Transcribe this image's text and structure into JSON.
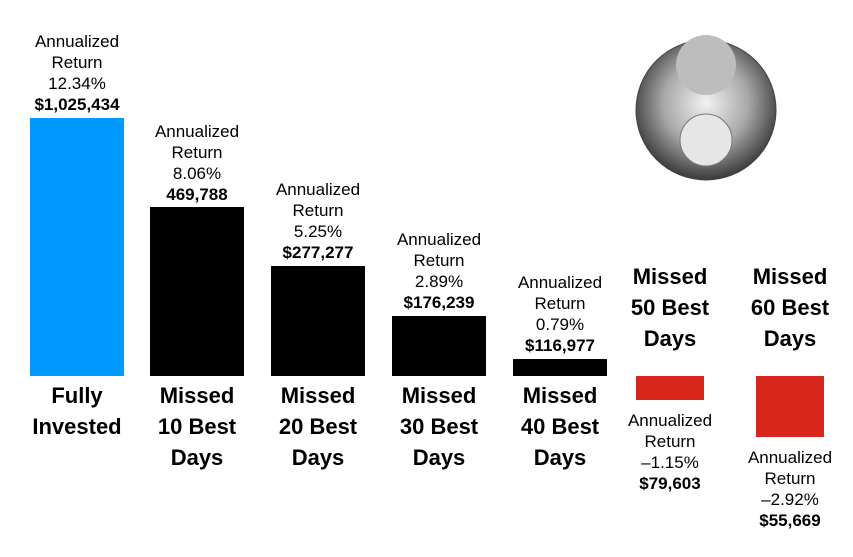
{
  "chart_data": {
    "type": "bar",
    "categories": [
      "Fully Invested",
      "Missed 10 Best Days",
      "Missed 20 Best Days",
      "Missed 30 Best Days",
      "Missed 40 Best Days",
      "Missed 50 Best Days",
      "Missed 60 Best Days"
    ],
    "value_caption": "Annualized Return",
    "values": [
      12.34,
      8.06,
      5.25,
      2.89,
      0.79,
      -1.15,
      -2.92
    ],
    "value_labels": [
      "12.34%",
      "8.06%",
      "5.25%",
      "2.89%",
      "0.79%",
      "–1.15%",
      "–2.92%"
    ],
    "ending_values": [
      1025434,
      469788,
      277277,
      176239,
      116977,
      79603,
      55669
    ],
    "ending_value_labels": [
      "$1,025,434",
      "469,788",
      "$277,277",
      "$176,239",
      "$116,977",
      "$79,603",
      "$55,669"
    ],
    "colors": [
      "#0099ff",
      "#000000",
      "#000000",
      "#000000",
      "#000000",
      "#d9261c",
      "#d9261c"
    ]
  }
}
